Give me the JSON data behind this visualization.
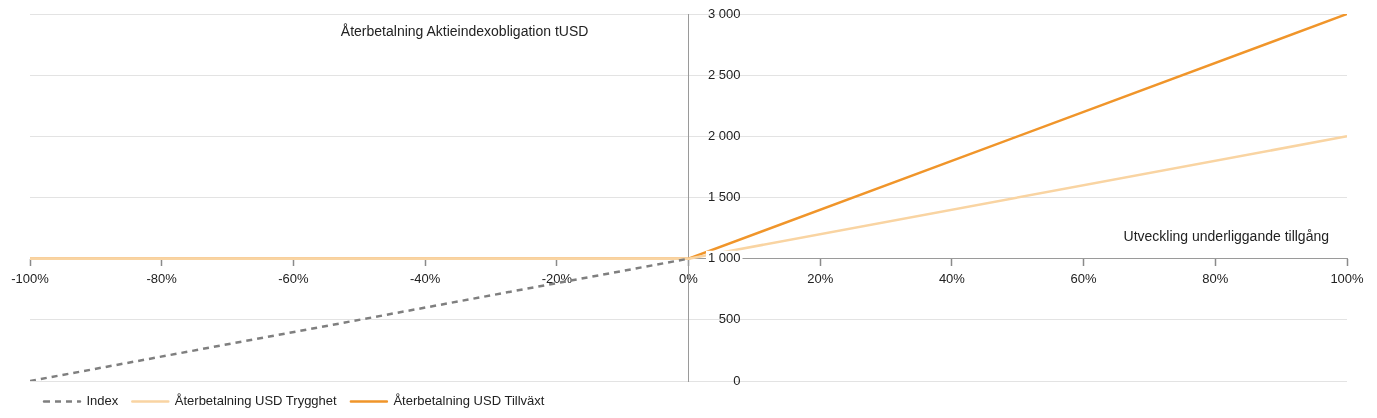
{
  "chart_data": {
    "type": "line",
    "xlabel": "Utveckling underliggande tillgång",
    "ylabel": "Återbetalning Aktieindexobligation tUSD",
    "x": [
      -100,
      0,
      100
    ],
    "series": [
      {
        "name": "Index",
        "color": "#7f7f7f",
        "values": [
          0,
          1000,
          null
        ],
        "line_style": "dashed"
      },
      {
        "name": "Återbetalning USD Trygghet",
        "color": "#f9d4a2",
        "values": [
          1000,
          1000,
          2000
        ],
        "line_style": "solid"
      },
      {
        "name": "Återbetalning USD Tillväxt",
        "color": "#f0952a",
        "values": [
          1000,
          1000,
          3000
        ],
        "line_style": "solid"
      }
    ],
    "xlim": [
      -100,
      100
    ],
    "xticks": [
      {
        "value": -100,
        "label": "-100%"
      },
      {
        "value": -80,
        "label": "-80%"
      },
      {
        "value": -60,
        "label": "-60%"
      },
      {
        "value": -40,
        "label": "-40%"
      },
      {
        "value": -20,
        "label": "-20%"
      },
      {
        "value": 0,
        "label": "0%"
      },
      {
        "value": 20,
        "label": "20%"
      },
      {
        "value": 40,
        "label": "40%"
      },
      {
        "value": 60,
        "label": "60%"
      },
      {
        "value": 80,
        "label": "80%"
      },
      {
        "value": 100,
        "label": "100%"
      }
    ],
    "ylim": [
      0,
      3000
    ],
    "yticks": [
      0,
      500,
      {
        "value": 1000,
        "label": "1 000"
      },
      {
        "value": 1500,
        "label": "1 500"
      },
      {
        "value": 2000,
        "label": "2 000"
      },
      {
        "value": 2500,
        "label": "2 500"
      },
      {
        "value": 3000,
        "label": "3 000"
      }
    ],
    "grid": "y",
    "legend": "bottom left",
    "marker": "none"
  }
}
